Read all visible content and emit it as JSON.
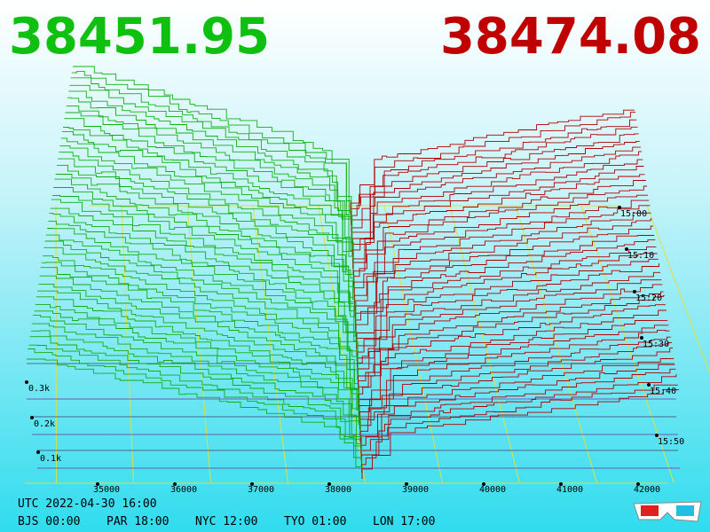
{
  "header": {
    "bid": "38451.95",
    "ask": "38474.08"
  },
  "price_axis": [
    "35000",
    "36000",
    "37000",
    "38000",
    "39000",
    "40000",
    "41000",
    "42000"
  ],
  "depth_axis": [
    "0.1k",
    "0.2k",
    "0.3k"
  ],
  "time_axis": [
    "15:00",
    "15:10",
    "15:20",
    "15:30",
    "15:40",
    "15:50"
  ],
  "footer": {
    "utc": "UTC 2022-04-30 16:00",
    "zones": [
      "BJS 00:00",
      "PAR 18:00",
      "NYC 12:00",
      "TYO 01:00",
      "LON 17:00"
    ]
  }
}
